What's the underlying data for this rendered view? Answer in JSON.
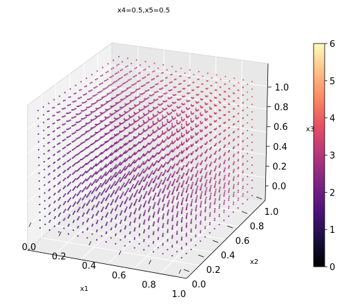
{
  "chart_data": {
    "type": "scatter",
    "title": "x4=0.5,x5=0.5",
    "xlabel": "x1",
    "ylabel": "x2",
    "zlabel": "x3",
    "xlim": [
      0.0,
      1.0
    ],
    "ylim": [
      0.0,
      1.0
    ],
    "zlim": [
      0.0,
      1.0
    ],
    "x_ticks": [
      "0.0",
      "0.2",
      "0.4",
      "0.6",
      "0.8",
      "1.0"
    ],
    "y_ticks": [
      "0.0",
      "0.2",
      "0.4",
      "0.6",
      "0.8",
      "1.0"
    ],
    "z_ticks": [
      "0.0",
      "0.2",
      "0.4",
      "0.6",
      "0.8",
      "1.0"
    ],
    "grid": true,
    "colormap": "magma",
    "colorbar": {
      "range": [
        0,
        6
      ],
      "ticks": [
        "0",
        "1",
        "2",
        "3",
        "4",
        "5",
        "6"
      ],
      "placement": "right"
    },
    "points": {
      "grid_resolution": 16,
      "x_range": [
        0.0,
        1.0
      ],
      "y_range": [
        0.0,
        1.0
      ],
      "z_range": [
        0.0,
        1.0
      ],
      "color_value": "x1 + x2 + x3 + x4 + x5",
      "fixed": {
        "x4": 0.5,
        "x5": 0.5
      },
      "value_range": [
        1.0,
        4.0
      ]
    }
  }
}
